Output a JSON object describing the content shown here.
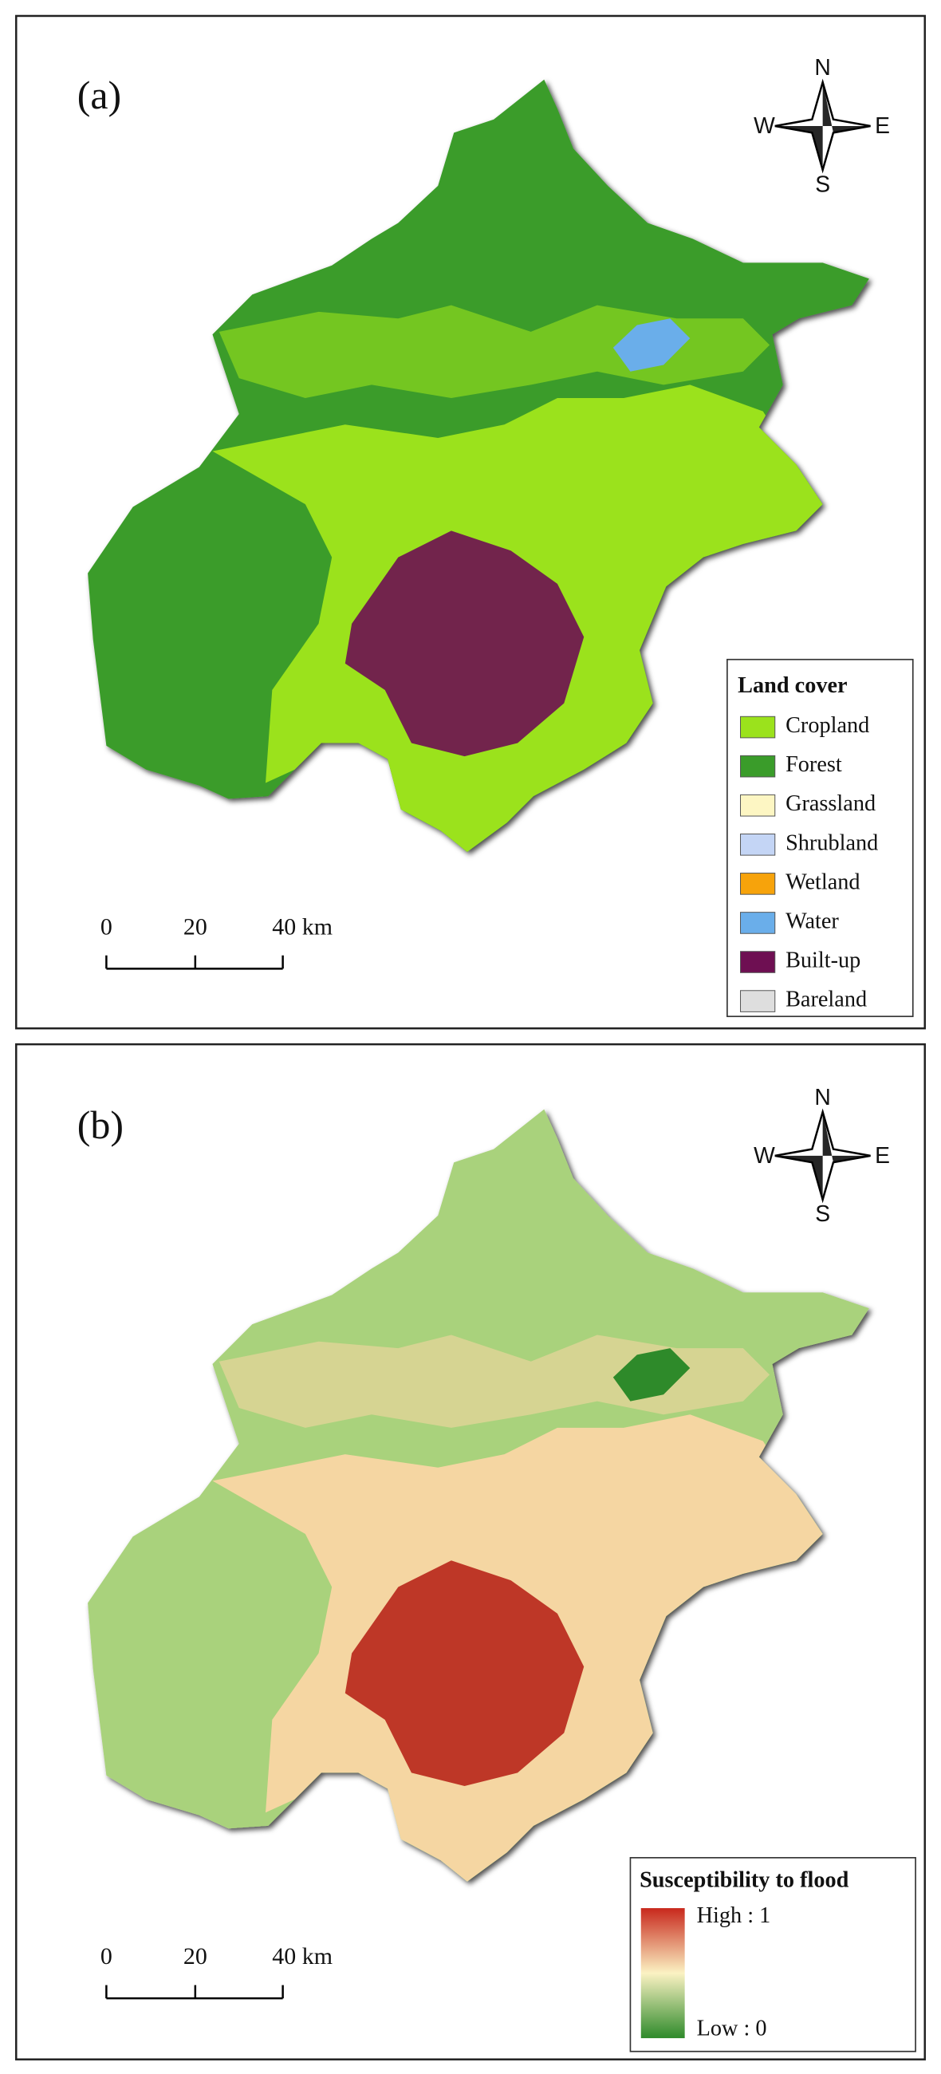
{
  "panels": [
    {
      "label": "(a)",
      "compass": {
        "n": "N",
        "e": "E",
        "s": "S",
        "w": "W"
      },
      "legend": {
        "title": "Land cover",
        "items": [
          {
            "name": "Cropland",
            "color": "#9be21c"
          },
          {
            "name": "Forest",
            "color": "#3a9c2a"
          },
          {
            "name": "Grassland",
            "color": "#fdf6c3"
          },
          {
            "name": "Shrubland",
            "color": "#c4d5f5"
          },
          {
            "name": "Wetland",
            "color": "#f7a30b"
          },
          {
            "name": "Water",
            "color": "#6aaeea"
          },
          {
            "name": "Built-up",
            "color": "#6e0f52"
          },
          {
            "name": "Bareland",
            "color": "#dedede"
          }
        ]
      },
      "scale_bar": [
        "0",
        "20",
        "40 km"
      ]
    },
    {
      "label": "(b)",
      "compass": {
        "n": "N",
        "e": "E",
        "s": "S",
        "w": "W"
      },
      "legend": {
        "title": "Susceptibility to flood",
        "high": "High : 1",
        "low": "Low : 0"
      },
      "scale_bar": [
        "0",
        "20",
        "40 km"
      ]
    }
  ]
}
